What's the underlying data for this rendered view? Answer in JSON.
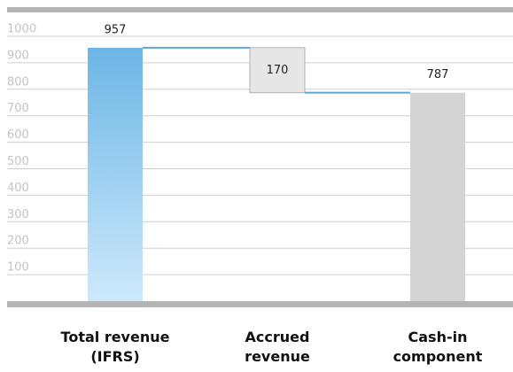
{
  "chart_data": {
    "type": "waterfall",
    "categories": [
      "Total revenue (IFRS)",
      "Accrued revenue",
      "Cash-in component"
    ],
    "values": [
      957,
      -170,
      787
    ],
    "value_labels": [
      "957",
      "170",
      "787"
    ],
    "colors": [
      "#8cc8ee",
      "#e6e6e6",
      "#d4d4d4"
    ],
    "connector_color": "#5aa8dc",
    "ylim": [
      0,
      1000
    ],
    "yticks": [
      100,
      200,
      300,
      400,
      500,
      600,
      700,
      800,
      900,
      1000
    ],
    "grid": true
  }
}
